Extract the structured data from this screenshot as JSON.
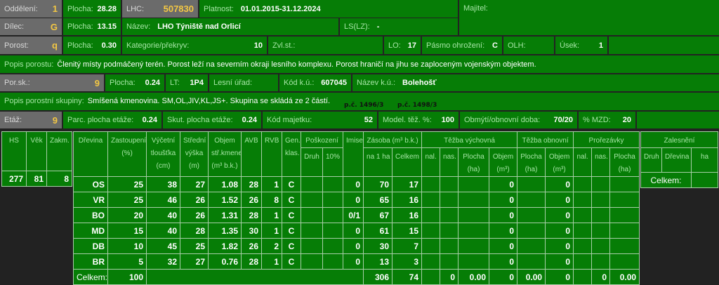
{
  "header": {
    "oddeleni": {
      "label": "Oddělení:",
      "value": "1"
    },
    "plocha1": {
      "label": "Plocha:",
      "value": "28.28"
    },
    "lhc": {
      "label": "LHC:",
      "value": "507830"
    },
    "platnost": {
      "label": "Platnost:",
      "value": "01.01.2015-31.12.2024"
    },
    "majitel": {
      "label": "Majitel:",
      "value": ""
    },
    "dilec": {
      "label": "Dílec:",
      "value": "G"
    },
    "plocha2": {
      "label": "Plocha:",
      "value": "13.15"
    },
    "nazev": {
      "label": "Název:",
      "value": "LHO Týniště nad Orlicí"
    },
    "lslz": {
      "label": "LS(LZ):",
      "value": "-"
    },
    "porost": {
      "label": "Porost:",
      "value": "q"
    },
    "plocha3": {
      "label": "Plocha:",
      "value": "0.30"
    },
    "kategorie": {
      "label": "Kategorie/překryv:",
      "value": "10"
    },
    "zvlst": {
      "label": "Zvl.st.:",
      "value": ""
    },
    "lo": {
      "label": "LO:",
      "value": "17"
    },
    "pasmo": {
      "label": "Pásmo ohrožení:",
      "value": "C"
    },
    "olh": {
      "label": "OLH:",
      "value": ""
    },
    "usek": {
      "label": "Úsek:",
      "value": "1"
    },
    "popis_porostu": {
      "label": "Popis porostu:",
      "value": "Členitý místy podmáčený terén. Porost leží na severním okraji lesního komplexu. Porost hraničí na jihu se zaploceným vojenským objektem."
    },
    "porsk": {
      "label": "Por.sk.:",
      "value": "9"
    },
    "plocha4": {
      "label": "Plocha:",
      "value": "0.24"
    },
    "lt": {
      "label": "LT:",
      "value": "1P4"
    },
    "lesni_urad": {
      "label": "Lesní úřad:",
      "value": ""
    },
    "kod_ku": {
      "label": "Kód k.ú.:",
      "value": "607045"
    },
    "nazev_ku": {
      "label": "Název k.ú.:",
      "value": "Bolehošť"
    },
    "popis_skupiny": {
      "label": "Popis porostní skupiny:",
      "value": "Smíšená kmenovina. SM,OL,JIV,KL,JS+. Skupina se skládá ze 2 částí."
    },
    "parcels": [
      "p.č. 1496/3",
      "p.č. 1498/3"
    ],
    "etaz": {
      "label": "Etáž:",
      "value": "9"
    },
    "parc_plocha": {
      "label": "Parc. plocha etáže:",
      "value": "0.24"
    },
    "skut_plocha": {
      "label": "Skut. plocha etáže:",
      "value": "0.24"
    },
    "kod_majetku": {
      "label": "Kód majetku:",
      "value": "52"
    },
    "model_tez": {
      "label": "Model. těž. %:",
      "value": "100"
    },
    "obmyti": {
      "label": "Obmýtí/obnovní doba:",
      "value": "70/20"
    },
    "mzd": {
      "label": "% MZD:",
      "value": "20"
    }
  },
  "hs_table": {
    "headers": [
      "HS",
      "Věk",
      "Zakm."
    ],
    "values": [
      "277",
      "81",
      "8"
    ]
  },
  "main_table": {
    "headers": {
      "drevina": "Dřevina",
      "zastoupeni": "Zastoupení (%)",
      "vycetni": "Výčetní tloušťka (cm)",
      "stredni": "Střední výška (m)",
      "objem": "Objem stř.kmene (m³ b.k.)",
      "avb": "AVB",
      "rvb": "RVB",
      "gen": "Gen. klas.",
      "poskozeni": "Poškození",
      "druh": "Druh",
      "p10": "10%",
      "imise": "Imise",
      "zasoba": "Zásoba (m³ b.k.)",
      "na1ha": "na 1 ha",
      "celkem": "Celkem",
      "tezba_vych": "Těžba výchovná",
      "nal": "nal.",
      "nas": "nas.",
      "plocha_ha": "Plocha (ha)",
      "objem_m3": "Objem (m³)",
      "tezba_obn": "Těžba obnovní",
      "prorezavky": "Prořezávky"
    },
    "rows": [
      [
        "OS",
        "25",
        "38",
        "27",
        "1.08",
        "28",
        "1",
        "C",
        "",
        "",
        "0",
        "70",
        "17",
        "",
        "",
        "",
        "0",
        "",
        "0",
        "",
        "",
        ""
      ],
      [
        "VR",
        "25",
        "46",
        "26",
        "1.52",
        "26",
        "8",
        "C",
        "",
        "",
        "0",
        "65",
        "16",
        "",
        "",
        "",
        "0",
        "",
        "0",
        "",
        "",
        ""
      ],
      [
        "BO",
        "20",
        "40",
        "26",
        "1.31",
        "28",
        "1",
        "C",
        "",
        "",
        "0/1",
        "67",
        "16",
        "",
        "",
        "",
        "0",
        "",
        "0",
        "",
        "",
        ""
      ],
      [
        "MD",
        "15",
        "40",
        "28",
        "1.35",
        "30",
        "1",
        "C",
        "",
        "",
        "0",
        "61",
        "15",
        "",
        "",
        "",
        "0",
        "",
        "0",
        "",
        "",
        ""
      ],
      [
        "DB",
        "10",
        "45",
        "25",
        "1.82",
        "26",
        "2",
        "C",
        "",
        "",
        "0",
        "30",
        "7",
        "",
        "",
        "",
        "0",
        "",
        "0",
        "",
        "",
        ""
      ],
      [
        "BR",
        "5",
        "32",
        "27",
        "0.76",
        "28",
        "1",
        "C",
        "",
        "",
        "0",
        "13",
        "3",
        "",
        "",
        "",
        "0",
        "",
        "0",
        "",
        "",
        ""
      ]
    ],
    "total": {
      "label": "Celkem:",
      "zastoupeni": "100",
      "na1ha": "306",
      "celkem": "74",
      "tv_nas": "0",
      "tv_plocha": "0.00",
      "tv_objem": "0",
      "to_plocha": "0.00",
      "to_objem": "0",
      "pr_nas": "0",
      "pr_plocha": "0.00"
    }
  },
  "zalesneni": {
    "title": "Zalesnění",
    "headers": [
      "Druh",
      "Dřevina",
      "ha"
    ],
    "total_label": "Celkem:",
    "total_value": ""
  },
  "colors": {
    "green": "#067d06",
    "gray": "#6b6b6b",
    "label": "#a6e6a6",
    "accent": "#f2c744",
    "background": "#222222"
  }
}
